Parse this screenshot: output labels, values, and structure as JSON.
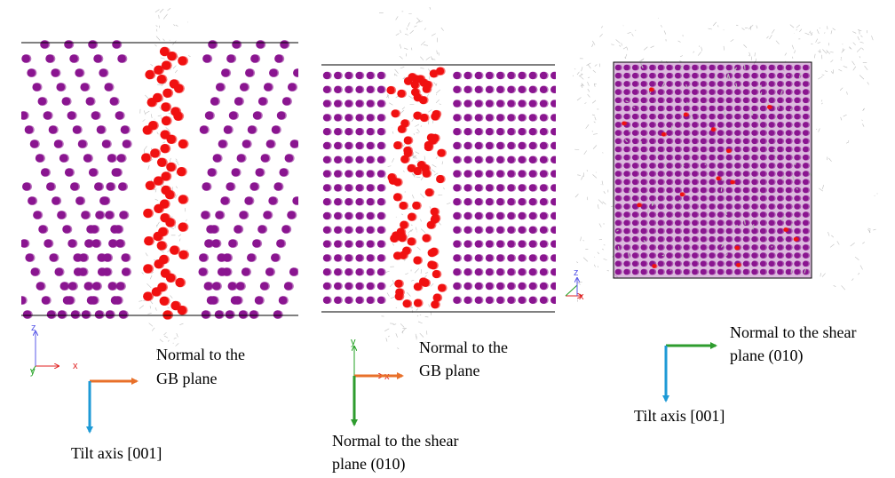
{
  "colors": {
    "gb_atom": "#f01010",
    "bulk_atom": "#8a1590",
    "dislocation": "#a9a9a9",
    "arrow_orange": "#e8702a",
    "arrow_blue": "#1e9ad6",
    "arrow_green": "#2e9c2e",
    "axis_x": "#e02020",
    "axis_y": "#20a020",
    "axis_z": "#5a5ae8"
  },
  "panel_left": {
    "axes": {
      "x": "x",
      "y": "y",
      "z": "z"
    },
    "arrow_right_label_line1": "Normal to the",
    "arrow_right_label_line2": "GB plane",
    "arrow_down_label": "Tilt axis [001]"
  },
  "panel_middle": {
    "axes": {
      "x": "x",
      "y": "y"
    },
    "arrow_right_label_line1": "Normal to the",
    "arrow_right_label_line2": "GB plane",
    "arrow_down_label_line1": "Normal to the shear",
    "arrow_down_label_line2": "plane (010)"
  },
  "panel_right": {
    "axes": {
      "x": "x",
      "z": "z"
    },
    "arrow_right_label_line1": "Normal to the shear",
    "arrow_right_label_line2": "plane (010)",
    "arrow_down_label": "Tilt axis [001]"
  }
}
